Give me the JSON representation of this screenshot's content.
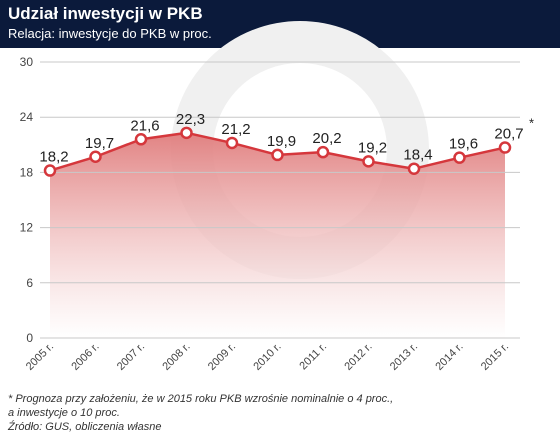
{
  "header": {
    "title": "Udział inwestycji w PKB",
    "subtitle": "Relacja: inwestycje do PKB w proc."
  },
  "chart_data": {
    "type": "area",
    "categories": [
      "2005 r.",
      "2006 r.",
      "2007 r.",
      "2008 r.",
      "2009 r.",
      "2010 r.",
      "2011 r.",
      "2012 r.",
      "2013 r.",
      "2014 r.",
      "2015 r."
    ],
    "values": [
      18.2,
      19.7,
      21.6,
      22.3,
      21.2,
      19.9,
      20.2,
      19.2,
      18.4,
      19.6,
      20.7
    ],
    "value_labels": [
      "18,2",
      "19,7",
      "21,6",
      "22,3",
      "21,2",
      "19,9",
      "20,2",
      "19,2",
      "18,4",
      "19,6",
      "20,7"
    ],
    "footnote_marker": "*",
    "yticks": [
      0,
      6,
      12,
      18,
      24,
      30
    ],
    "ylim": [
      0,
      30
    ],
    "grid": true,
    "colors": {
      "line": "#d5373c",
      "marker_fill": "#ffffff",
      "area_top": "#e07c7c",
      "area_bottom": "#ffffff",
      "grid": "#c8c8c8",
      "header_bg": "#0b1a3b"
    }
  },
  "notes": {
    "line1": "* Prognoza przy założeniu, że w 2015 roku PKB wzrośnie nominalnie o 4 proc.,",
    "line2": "a inwestycje o 10 proc.",
    "source": "Źródło: GUS, obliczenia własne"
  }
}
